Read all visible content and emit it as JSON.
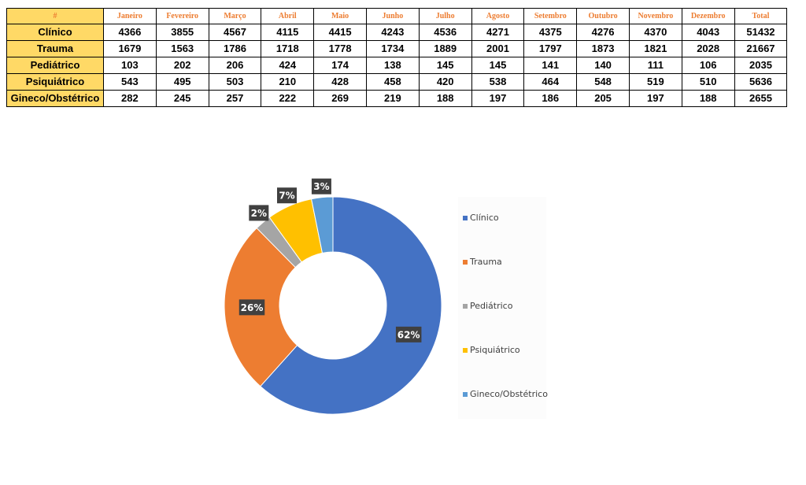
{
  "table": {
    "corner_label": "#",
    "headers": [
      "Janeiro",
      "Fevereiro",
      "Março",
      "Abril",
      "Maio",
      "Junho",
      "Julho",
      "Agosto",
      "Setembro",
      "Outubro",
      "Novembro",
      "Dezembro",
      "Total"
    ],
    "rows": [
      {
        "label": "Clínico",
        "values": [
          "4366",
          "3855",
          "4567",
          "4115",
          "4415",
          "4243",
          "4536",
          "4271",
          "4375",
          "4276",
          "4370",
          "4043",
          "51432"
        ]
      },
      {
        "label": "Trauma",
        "values": [
          "1679",
          "1563",
          "1786",
          "1718",
          "1778",
          "1734",
          "1889",
          "2001",
          "1797",
          "1873",
          "1821",
          "2028",
          "21667"
        ]
      },
      {
        "label": "Pediátrico",
        "values": [
          "103",
          "202",
          "206",
          "424",
          "174",
          "138",
          "145",
          "145",
          "141",
          "140",
          "111",
          "106",
          "2035"
        ]
      },
      {
        "label": "Psiquiátrico",
        "values": [
          "543",
          "495",
          "503",
          "210",
          "428",
          "458",
          "420",
          "538",
          "464",
          "548",
          "519",
          "510",
          "5636"
        ]
      },
      {
        "label": "Gineco/Obstétrico",
        "values": [
          "282",
          "245",
          "257",
          "222",
          "269",
          "219",
          "188",
          "197",
          "186",
          "205",
          "197",
          "188",
          "2655"
        ]
      }
    ]
  },
  "chart_data": {
    "type": "pie",
    "donut": true,
    "categories": [
      "Clínico",
      "Trauma",
      "Pediátrico",
      "Psiquiátrico",
      "Gineco/Obstétrico"
    ],
    "values": [
      51432,
      21667,
      2035,
      5636,
      2655
    ],
    "data_labels": [
      "62%",
      "26%",
      "2%",
      "7%",
      "3%"
    ],
    "colors": [
      "#4472c4",
      "#ed7d31",
      "#a5a5a5",
      "#ffc000",
      "#5b9bd5"
    ],
    "legend_position": "right",
    "title": ""
  }
}
